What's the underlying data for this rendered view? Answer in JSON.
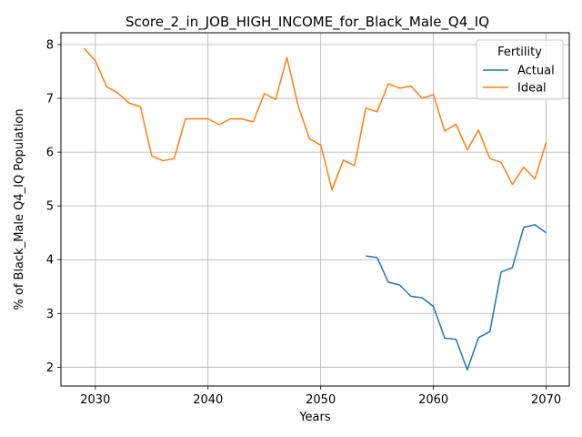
{
  "chart_data": {
    "type": "line",
    "title": "Score_2_in_JOB_HIGH_INCOME_for_Black_Male_Q4_IQ",
    "xlabel": "Years",
    "ylabel": "% of Black_Male Q4_IQ Population",
    "xlim": [
      2026.95,
      2072.05
    ],
    "ylim": [
      1.65,
      8.22
    ],
    "xticks": [
      2030,
      2040,
      2050,
      2060,
      2070
    ],
    "yticks": [
      2,
      3,
      4,
      5,
      6,
      7,
      8
    ],
    "grid": true,
    "legend": {
      "title": "Fertility",
      "placement": "top-right"
    },
    "series": [
      {
        "name": "Actual",
        "color": "#1f77b4",
        "x": [
          2054,
          2055,
          2056,
          2057,
          2058,
          2059,
          2060,
          2061,
          2062,
          2063,
          2064,
          2065,
          2066,
          2067,
          2068,
          2069,
          2070
        ],
        "y": [
          4.07,
          4.04,
          3.58,
          3.53,
          3.32,
          3.29,
          3.13,
          2.54,
          2.52,
          1.95,
          2.55,
          2.66,
          3.77,
          3.85,
          4.6,
          4.65,
          4.5
        ]
      },
      {
        "name": "Ideal",
        "color": "#ff7f0e",
        "x": [
          2029,
          2030,
          2031,
          2032,
          2033,
          2034,
          2035,
          2036,
          2037,
          2038,
          2039,
          2040,
          2041,
          2042,
          2043,
          2044,
          2045,
          2046,
          2047,
          2048,
          2049,
          2050,
          2051,
          2052,
          2053,
          2054,
          2055,
          2056,
          2057,
          2058,
          2059,
          2060,
          2061,
          2062,
          2063,
          2064,
          2065,
          2066,
          2067,
          2068,
          2069,
          2070
        ],
        "y": [
          7.93,
          7.7,
          7.22,
          7.1,
          6.91,
          6.85,
          5.93,
          5.84,
          5.88,
          6.62,
          6.62,
          6.62,
          6.51,
          6.62,
          6.62,
          6.56,
          7.09,
          6.98,
          7.76,
          6.86,
          6.25,
          6.13,
          5.3,
          5.85,
          5.75,
          6.82,
          6.75,
          7.27,
          7.19,
          7.23,
          7.0,
          7.07,
          6.39,
          6.52,
          6.04,
          6.41,
          5.88,
          5.81,
          5.4,
          5.72,
          5.5,
          6.18
        ]
      }
    ]
  }
}
